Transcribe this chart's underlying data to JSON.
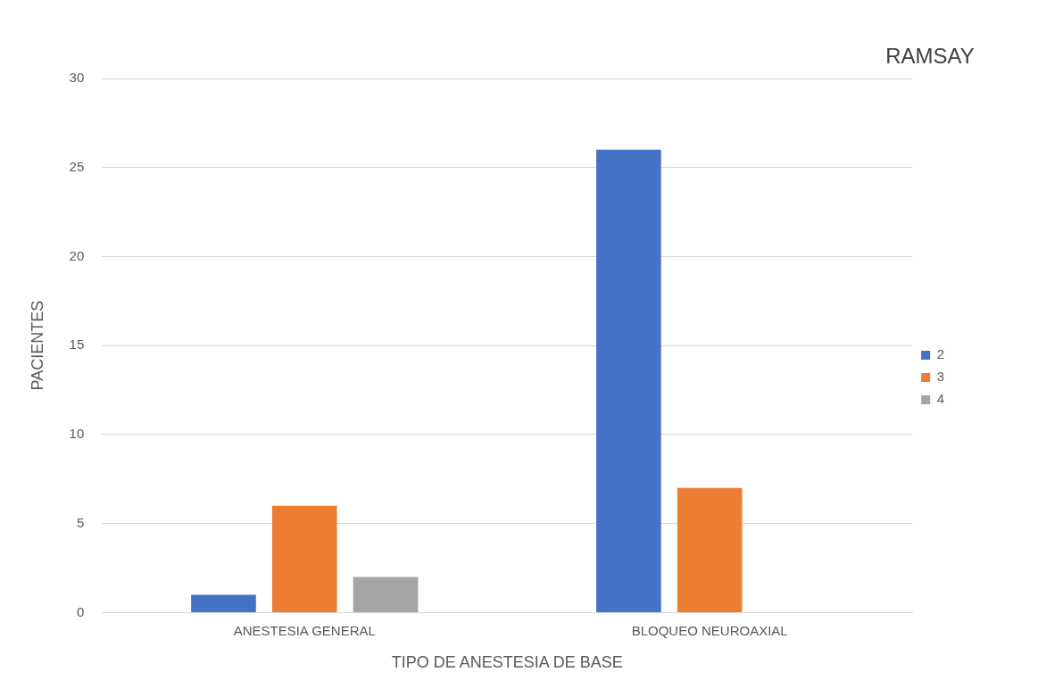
{
  "chart_data": {
    "type": "bar",
    "xlabel": "TIPO DE ANESTESIA DE BASE",
    "ylabel": "PACIENTES",
    "legend_title": "RAMSAY",
    "categories": [
      "ANESTESIA GENERAL",
      "BLOQUEO NEUROAXIAL"
    ],
    "series": [
      {
        "name": "2",
        "color": "#4472c4",
        "values": [
          1,
          26
        ]
      },
      {
        "name": "3",
        "color": "#ed7d31",
        "values": [
          6,
          7
        ]
      },
      {
        "name": "4",
        "color": "#a5a5a5",
        "values": [
          2,
          0
        ]
      }
    ],
    "ylim": [
      0,
      30
    ],
    "yticks": [
      0,
      5,
      10,
      15,
      20,
      25,
      30
    ],
    "grid": "y",
    "legend": "right"
  }
}
